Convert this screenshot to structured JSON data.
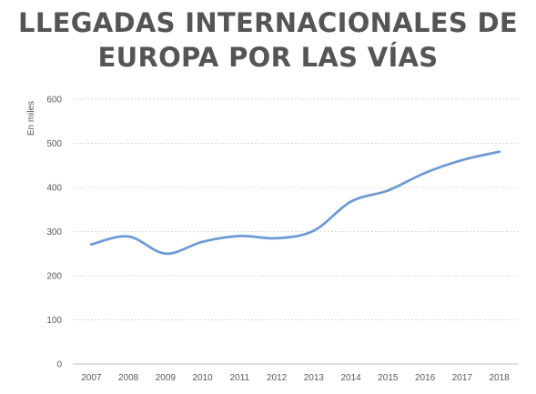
{
  "title_lines": [
    "LLEGADAS INTERNACIONALES DE",
    "EUROPA POR LAS VÍAS"
  ],
  "chart_data": {
    "type": "line",
    "title": "LLEGADAS INTERNACIONALES DE EUROPA POR LAS VÍAS",
    "ylabel": "En miles",
    "xlabel": "",
    "categories": [
      "2007",
      "2008",
      "2009",
      "2010",
      "2011",
      "2012",
      "2013",
      "2014",
      "2015",
      "2016",
      "2017",
      "2018"
    ],
    "series": [
      {
        "name": "",
        "values": [
          271,
          289,
          250,
          277,
          290,
          285,
          302,
          368,
          393,
          433,
          462,
          481
        ]
      }
    ],
    "ylim": [
      0,
      600
    ],
    "yticks": [
      0,
      100,
      200,
      300,
      400,
      500,
      600
    ],
    "grid": true,
    "legend": "none",
    "line_color": "#6e9bd3",
    "grid_color": "#d9d9d9",
    "tick_color": "#595959",
    "title_color": "#555555"
  }
}
